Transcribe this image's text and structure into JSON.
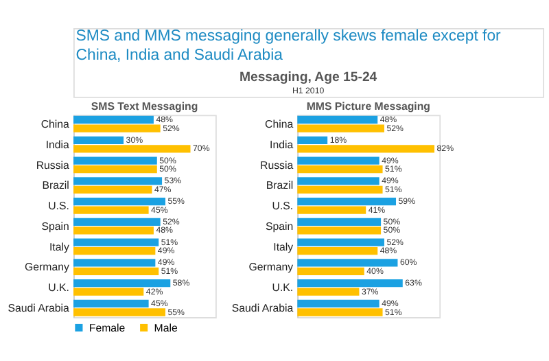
{
  "chart_data": [
    {
      "type": "other",
      "title": "SMS and MMS messaging generally skews female except for China, India and Saudi Arabia",
      "subtitle": "Messaging, Age 15-24",
      "annotations": [
        "H1 2010"
      ]
    },
    {
      "type": "bar",
      "orientation": "horizontal",
      "title": "SMS Text Messaging",
      "categories": [
        "China",
        "India",
        "Russia",
        "Brazil",
        "U.S.",
        "Spain",
        "Italy",
        "Germany",
        "U.K.",
        "Saudi Arabia"
      ],
      "xlim": [
        0,
        85
      ],
      "tick_labels": "y",
      "legend": "bottom",
      "series": [
        {
          "name": "Female",
          "color": "#1ba1e2",
          "values": [
            48,
            30,
            50,
            53,
            55,
            52,
            51,
            49,
            58,
            45
          ],
          "value_labels": [
            "48%",
            "30%",
            "50%",
            "53%",
            "55%",
            "52%",
            "51%",
            "49%",
            "58%",
            "45%"
          ]
        },
        {
          "name": "Male",
          "color": "#ffc000",
          "values": [
            52,
            70,
            50,
            47,
            45,
            48,
            49,
            51,
            42,
            55
          ],
          "value_labels": [
            "52%",
            "70%",
            "50%",
            "47%",
            "45%",
            "48%",
            "49%",
            "51%",
            "42%",
            "55%"
          ]
        }
      ]
    },
    {
      "type": "bar",
      "orientation": "horizontal",
      "title": "MMS Picture Messaging",
      "categories": [
        "China",
        "India",
        "Russia",
        "Brazil",
        "U.S.",
        "Spain",
        "Italy",
        "Germany",
        "U.K.",
        "Saudi Arabia"
      ],
      "xlim": [
        0,
        85
      ],
      "tick_labels": "y",
      "series": [
        {
          "name": "Female",
          "color": "#1ba1e2",
          "values": [
            48,
            18,
            49,
            49,
            59,
            50,
            52,
            60,
            63,
            49
          ],
          "value_labels": [
            "48%",
            "18%",
            "49%",
            "49%",
            "59%",
            "50%",
            "52%",
            "60%",
            "63%",
            "49%"
          ]
        },
        {
          "name": "Male",
          "color": "#ffc000",
          "values": [
            52,
            82,
            51,
            51,
            41,
            50,
            48,
            40,
            37,
            51
          ],
          "value_labels": [
            "52%",
            "82%",
            "51%",
            "51%",
            "41%",
            "50%",
            "48%",
            "40%",
            "37%",
            "51%"
          ]
        }
      ]
    }
  ]
}
